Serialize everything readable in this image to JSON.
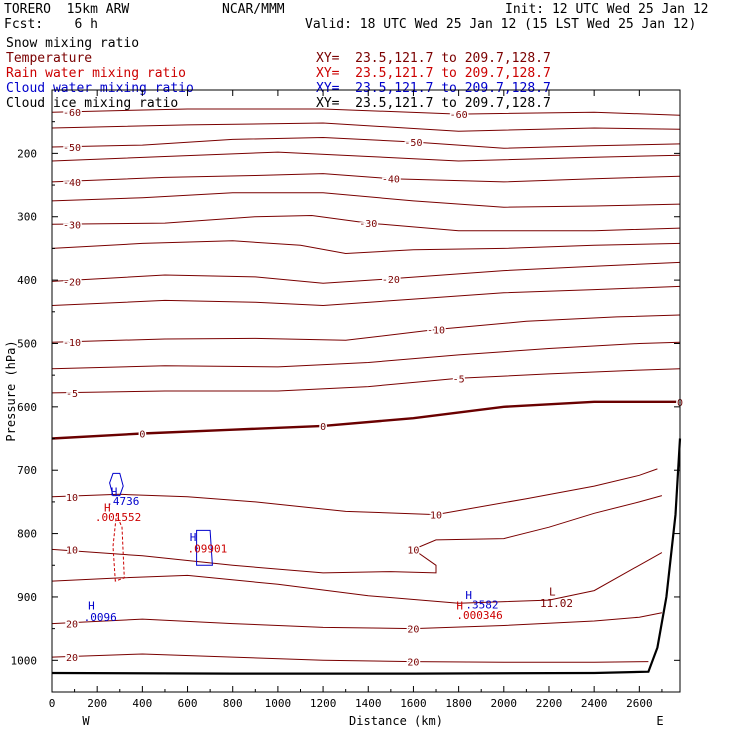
{
  "header": {
    "model": "TORERO  15km ARW",
    "fcst": "Fcst:    6 h",
    "center": "NCAR/MMM",
    "init": "Init: 12 UTC Wed 25 Jan 12",
    "valid": "Valid: 18 UTC Wed 25 Jan 12 (15 LST Wed 25 Jan 12)"
  },
  "fields": [
    {
      "name": "Snow mixing ratio",
      "color": "#000000",
      "xy": ""
    },
    {
      "name": "Temperature",
      "color": "#7a0000",
      "xy": "XY=  23.5,121.7 to 209.7,128.7"
    },
    {
      "name": "Rain water mixing ratio",
      "color": "#cc0000",
      "xy": "XY=  23.5,121.7 to 209.7,128.7"
    },
    {
      "name": "Cloud water mixing ratio",
      "color": "#0000cc",
      "xy": "XY=  23.5,121.7 to 209.7,128.7"
    },
    {
      "name": "Cloud ice mixing ratio",
      "color": "#000000",
      "xy": "XY=  23.5,121.7 to 209.7,128.7"
    }
  ],
  "chart_data": {
    "type": "line",
    "title": "Cross-section XY= 23.5,121.7 to 209.7,128.7",
    "xlabel": "Distance (km)",
    "ylabel": "Pressure (hPa)",
    "xlim": [
      0,
      2780
    ],
    "ylim": [
      1050,
      100
    ],
    "x_ticks": [
      0,
      200,
      400,
      600,
      800,
      1000,
      1200,
      1400,
      1600,
      1800,
      2000,
      2200,
      2400,
      2600
    ],
    "y_ticks": [
      200,
      300,
      400,
      500,
      600,
      700,
      800,
      900,
      1000
    ],
    "end_labels": {
      "left": "W",
      "right": "E"
    },
    "colors": {
      "temp": "#7a0000",
      "zero": "#6a0000",
      "rain": "#cc0000",
      "cloud": "#0000cc",
      "terrain": "#000000"
    },
    "isotherms": [
      {
        "label": "-60",
        "points": [
          [
            0,
            135
          ],
          [
            600,
            130
          ],
          [
            1200,
            130
          ],
          [
            1800,
            138
          ],
          [
            2400,
            135
          ],
          [
            2780,
            140
          ]
        ]
      },
      {
        "label": "",
        "points": [
          [
            0,
            160
          ],
          [
            600,
            155
          ],
          [
            1200,
            152
          ],
          [
            1800,
            165
          ],
          [
            2400,
            160
          ],
          [
            2780,
            162
          ]
        ]
      },
      {
        "label": "-50",
        "points": [
          [
            0,
            190
          ],
          [
            400,
            187
          ],
          [
            800,
            178
          ],
          [
            1200,
            175
          ],
          [
            1600,
            182
          ],
          [
            2000,
            192
          ],
          [
            2400,
            188
          ],
          [
            2780,
            185
          ]
        ]
      },
      {
        "label": "",
        "points": [
          [
            0,
            212
          ],
          [
            500,
            205
          ],
          [
            1000,
            198
          ],
          [
            1400,
            205
          ],
          [
            1800,
            212
          ],
          [
            2400,
            206
          ],
          [
            2780,
            203
          ]
        ]
      },
      {
        "label": "-40",
        "points": [
          [
            0,
            245
          ],
          [
            500,
            238
          ],
          [
            900,
            235
          ],
          [
            1200,
            232
          ],
          [
            1500,
            240
          ],
          [
            2000,
            245
          ],
          [
            2400,
            240
          ],
          [
            2780,
            236
          ]
        ]
      },
      {
        "label": "",
        "points": [
          [
            0,
            275
          ],
          [
            400,
            270
          ],
          [
            800,
            262
          ],
          [
            1200,
            262
          ],
          [
            1600,
            275
          ],
          [
            2000,
            285
          ],
          [
            2400,
            283
          ],
          [
            2780,
            280
          ]
        ]
      },
      {
        "label": "-30",
        "points": [
          [
            0,
            312
          ],
          [
            500,
            310
          ],
          [
            900,
            300
          ],
          [
            1150,
            298
          ],
          [
            1400,
            310
          ],
          [
            1800,
            322
          ],
          [
            2400,
            322
          ],
          [
            2780,
            318
          ]
        ]
      },
      {
        "label": "",
        "points": [
          [
            0,
            350
          ],
          [
            400,
            342
          ],
          [
            800,
            338
          ],
          [
            1100,
            345
          ],
          [
            1300,
            358
          ],
          [
            1600,
            352
          ],
          [
            2000,
            350
          ],
          [
            2400,
            345
          ],
          [
            2780,
            342
          ]
        ]
      },
      {
        "label": "-20",
        "points": [
          [
            0,
            402
          ],
          [
            500,
            392
          ],
          [
            900,
            395
          ],
          [
            1200,
            405
          ],
          [
            1500,
            398
          ],
          [
            2000,
            385
          ],
          [
            2400,
            378
          ],
          [
            2780,
            372
          ]
        ]
      },
      {
        "label": "",
        "points": [
          [
            0,
            440
          ],
          [
            500,
            432
          ],
          [
            900,
            435
          ],
          [
            1200,
            440
          ],
          [
            1600,
            430
          ],
          [
            2000,
            420
          ],
          [
            2400,
            415
          ],
          [
            2780,
            410
          ]
        ]
      },
      {
        "label": "-10",
        "points": [
          [
            0,
            498
          ],
          [
            500,
            493
          ],
          [
            900,
            492
          ],
          [
            1300,
            495
          ],
          [
            1700,
            478
          ],
          [
            2100,
            465
          ],
          [
            2500,
            458
          ],
          [
            2780,
            455
          ]
        ]
      },
      {
        "label": "",
        "points": [
          [
            0,
            540
          ],
          [
            500,
            535
          ],
          [
            1000,
            537
          ],
          [
            1400,
            530
          ],
          [
            1800,
            518
          ],
          [
            2200,
            508
          ],
          [
            2600,
            500
          ],
          [
            2780,
            498
          ]
        ]
      },
      {
        "label": "-5",
        "points": [
          [
            0,
            578
          ],
          [
            500,
            575
          ],
          [
            1000,
            575
          ],
          [
            1400,
            568
          ],
          [
            1800,
            555
          ],
          [
            2200,
            548
          ],
          [
            2600,
            542
          ],
          [
            2780,
            540
          ]
        ]
      },
      {
        "label": "10",
        "points": [
          [
            0,
            742
          ],
          [
            300,
            738
          ],
          [
            600,
            742
          ],
          [
            900,
            750
          ],
          [
            1300,
            765
          ],
          [
            1700,
            770
          ],
          [
            2100,
            745
          ],
          [
            2400,
            725
          ],
          [
            2600,
            708
          ],
          [
            2680,
            698
          ]
        ]
      },
      {
        "label": "10",
        "points": [
          [
            0,
            825
          ],
          [
            400,
            835
          ],
          [
            800,
            850
          ],
          [
            1200,
            862
          ],
          [
            1500,
            860
          ],
          [
            1700,
            862
          ],
          [
            1700,
            850
          ],
          [
            1600,
            825
          ],
          [
            1700,
            810
          ],
          [
            2000,
            808
          ],
          [
            2200,
            790
          ],
          [
            2400,
            768
          ],
          [
            2600,
            750
          ],
          [
            2700,
            740
          ]
        ]
      },
      {
        "label": "",
        "points": [
          [
            0,
            875
          ],
          [
            300,
            870
          ],
          [
            600,
            866
          ],
          [
            1000,
            880
          ],
          [
            1400,
            898
          ],
          [
            1800,
            910
          ],
          [
            2200,
            905
          ],
          [
            2400,
            890
          ],
          [
            2550,
            860
          ],
          [
            2650,
            840
          ],
          [
            2700,
            830
          ]
        ]
      },
      {
        "label": "20",
        "points": [
          [
            0,
            942
          ],
          [
            400,
            935
          ],
          [
            800,
            942
          ],
          [
            1200,
            948
          ],
          [
            1600,
            950
          ],
          [
            2000,
            945
          ],
          [
            2400,
            938
          ],
          [
            2600,
            932
          ],
          [
            2700,
            925
          ]
        ]
      },
      {
        "label": "20",
        "points": [
          [
            0,
            995
          ],
          [
            400,
            990
          ],
          [
            800,
            995
          ],
          [
            1200,
            1000
          ],
          [
            1600,
            1002
          ],
          [
            2000,
            1003
          ],
          [
            2400,
            1003
          ],
          [
            2640,
            1002
          ]
        ]
      }
    ],
    "zero_isotherm": {
      "label": "0",
      "points": [
        [
          0,
          650
        ],
        [
          400,
          642
        ],
        [
          800,
          636
        ],
        [
          1200,
          630
        ],
        [
          1600,
          618
        ],
        [
          2000,
          600
        ],
        [
          2400,
          592
        ],
        [
          2780,
          592
        ]
      ]
    },
    "terrain": [
      [
        0,
        1020
      ],
      [
        800,
        1021
      ],
      [
        1600,
        1021
      ],
      [
        2400,
        1020
      ],
      [
        2640,
        1018
      ],
      [
        2680,
        980
      ],
      [
        2720,
        900
      ],
      [
        2760,
        770
      ],
      [
        2780,
        650
      ]
    ],
    "rain_contour": [
      [
        280,
        875
      ],
      [
        270,
        820
      ],
      [
        285,
        770
      ],
      [
        310,
        790
      ],
      [
        320,
        870
      ]
    ],
    "cloud_contours": [
      [
        [
          255,
          720
        ],
        [
          270,
          705
        ],
        [
          300,
          705
        ],
        [
          315,
          725
        ],
        [
          300,
          740
        ],
        [
          270,
          740
        ]
      ],
      [
        [
          640,
          795
        ],
        [
          700,
          795
        ],
        [
          710,
          850
        ],
        [
          640,
          850
        ]
      ]
    ],
    "labels": [
      {
        "text": "H",
        "x": 260,
        "y": 740,
        "color": "#0000cc"
      },
      {
        "text": ".4736",
        "x": 240,
        "y": 755,
        "color": "#0000cc"
      },
      {
        "text": "H",
        "x": 230,
        "y": 765,
        "color": "#cc0000"
      },
      {
        "text": ".001552",
        "x": 190,
        "y": 780,
        "color": "#cc0000"
      },
      {
        "text": "H",
        "x": 610,
        "y": 812,
        "color": "#0000cc"
      },
      {
        "text": ".09901",
        "x": 600,
        "y": 830,
        "color": "#cc0000"
      },
      {
        "text": "H",
        "x": 160,
        "y": 920,
        "color": "#0000cc"
      },
      {
        "text": ".0096",
        "x": 140,
        "y": 938,
        "color": "#0000cc"
      },
      {
        "text": "H",
        "x": 1830,
        "y": 903,
        "color": "#0000cc"
      },
      {
        "text": ".3582",
        "x": 1830,
        "y": 918,
        "color": "#0000cc"
      },
      {
        "text": "H",
        "x": 1790,
        "y": 920,
        "color": "#cc0000"
      },
      {
        "text": ".000346",
        "x": 1790,
        "y": 935,
        "color": "#cc0000"
      },
      {
        "text": "L",
        "x": 2200,
        "y": 898,
        "color": "#7a0000"
      },
      {
        "text": "11.02",
        "x": 2160,
        "y": 916,
        "color": "#7a0000"
      }
    ]
  }
}
